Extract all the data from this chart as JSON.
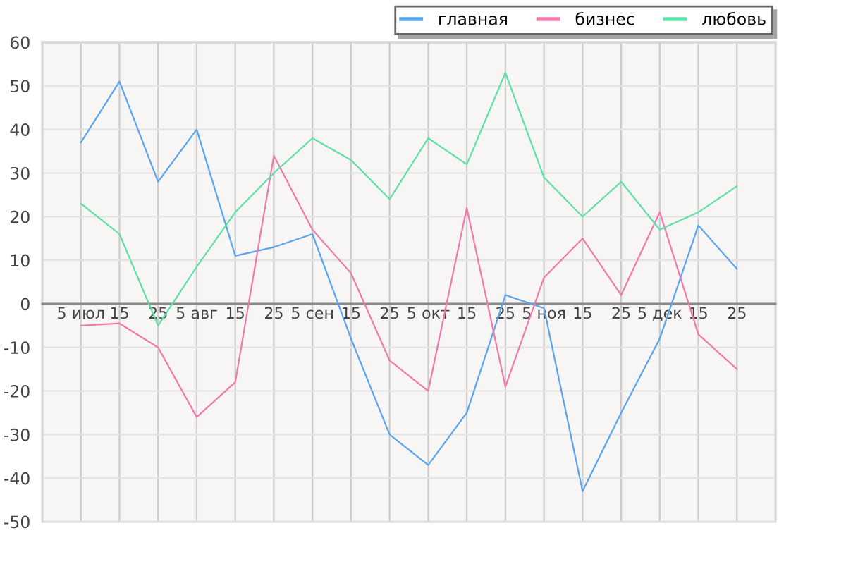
{
  "chart_data": {
    "type": "line",
    "categories": [
      "5 июл",
      "15",
      "25",
      "5 авг",
      "15",
      "25",
      "5 сен",
      "15",
      "25",
      "5 окт",
      "15",
      "25",
      "5 ноя",
      "15",
      "25",
      "5 дек",
      "15",
      "25"
    ],
    "series": [
      {
        "name": "главная",
        "color": "#5aa5f0",
        "values": [
          37,
          51,
          28,
          40,
          11,
          13,
          16,
          -8,
          -30,
          -37,
          -25,
          2,
          -1,
          -43,
          -25,
          -8,
          18,
          8
        ]
      },
      {
        "name": "бизнес",
        "color": "#f07aac",
        "values": [
          -5,
          -4.5,
          -10,
          -26,
          -18,
          34,
          17,
          7,
          -13,
          -20,
          22,
          -19,
          6,
          15,
          2,
          21,
          -7,
          -15
        ]
      },
      {
        "name": "любовь",
        "color": "#5ee0a8",
        "values": [
          23,
          16,
          -5,
          8.5,
          21,
          30,
          38,
          33,
          24,
          38,
          32,
          53,
          29,
          20,
          28,
          17,
          21,
          27
        ]
      }
    ],
    "ylim": [
      -50,
      60
    ],
    "yticks": [
      -50,
      -40,
      -30,
      -20,
      -10,
      0,
      10,
      20,
      30,
      40,
      50,
      60
    ],
    "grid": true,
    "legend": "top right",
    "line_style": "solid"
  }
}
